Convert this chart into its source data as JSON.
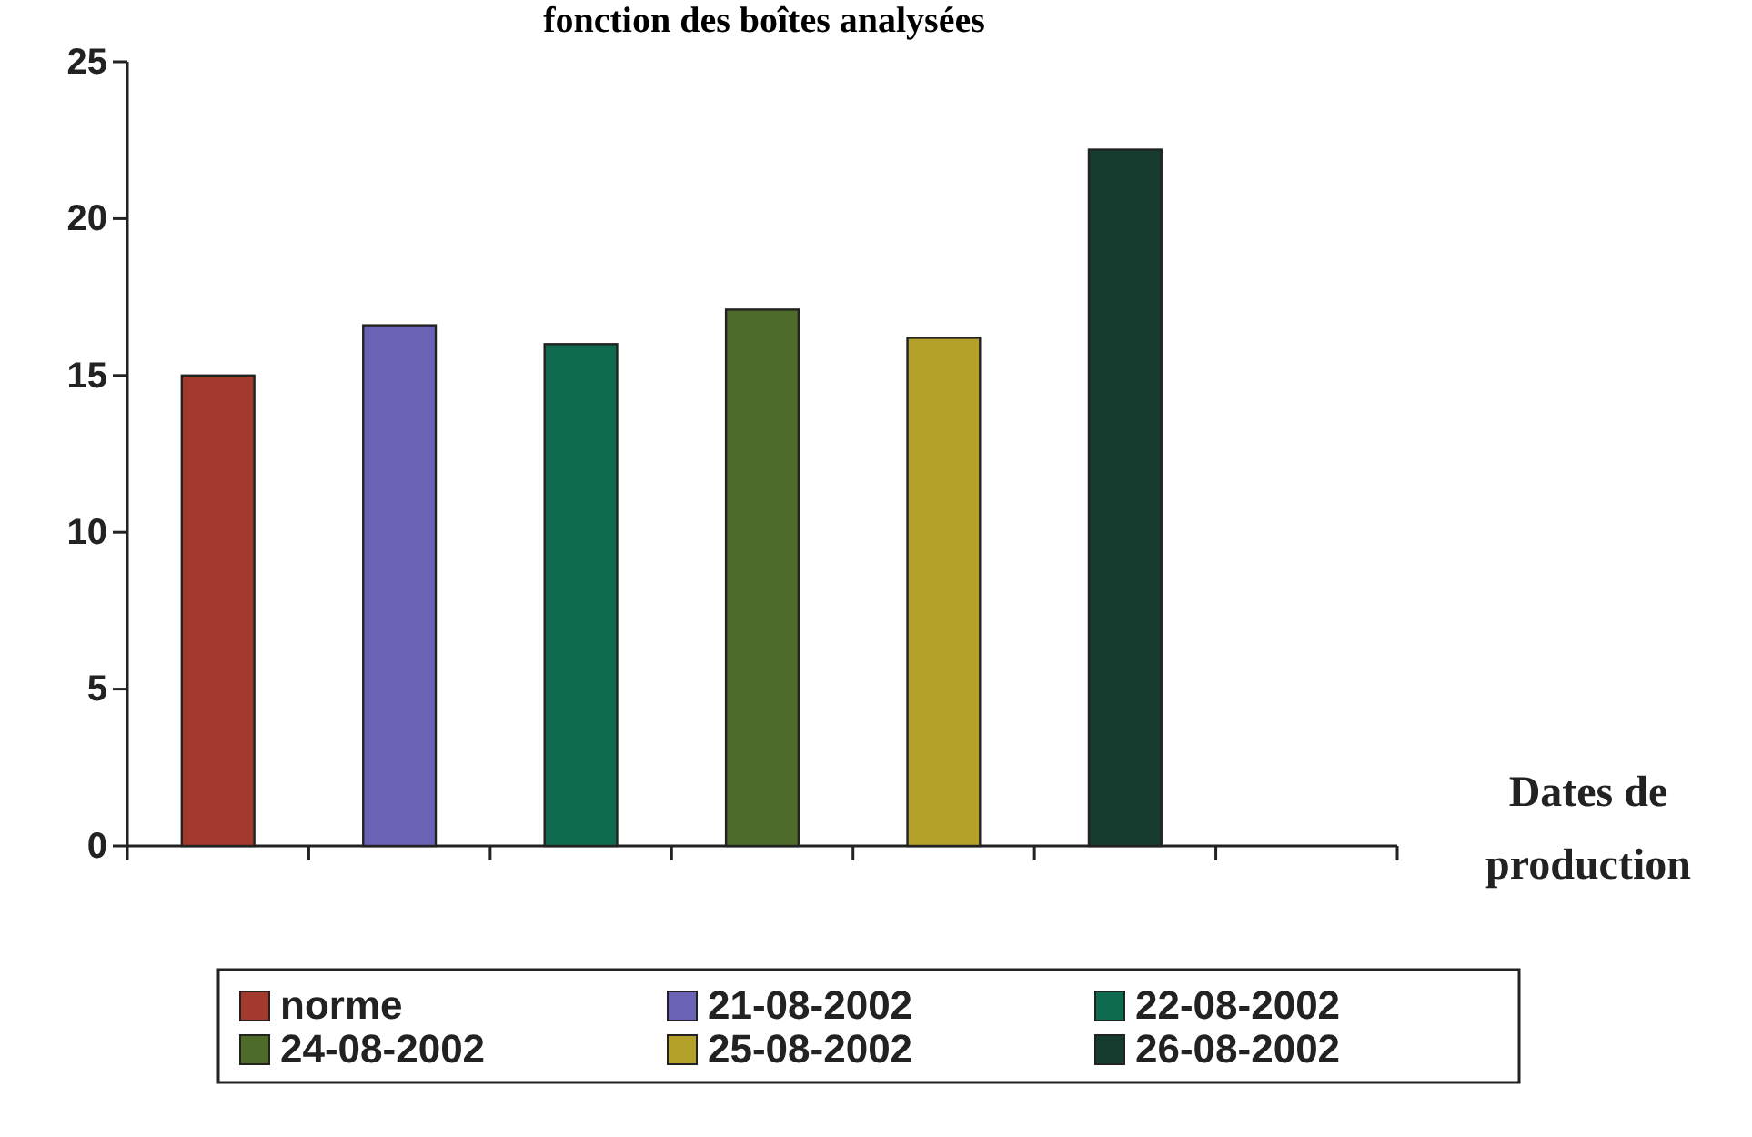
{
  "chart_data": {
    "type": "bar",
    "title": "fonction des boîtes analysées",
    "xlabel": "Dates de production",
    "categories": [
      null,
      null,
      null,
      null,
      null,
      null,
      null
    ],
    "series": [
      {
        "name": "norme",
        "color": "#a33a2e",
        "values": [
          15,
          null,
          null,
          null,
          null,
          null,
          null
        ]
      },
      {
        "name": "21-08-2002",
        "color": "#6a63b5",
        "values": [
          null,
          16.6,
          null,
          null,
          null,
          null,
          null
        ]
      },
      {
        "name": "22-08-2002",
        "color": "#0f6b4f",
        "values": [
          null,
          null,
          16.0,
          null,
          null,
          null,
          null
        ]
      },
      {
        "name": "24-08-2002",
        "color": "#4f6b2a",
        "values": [
          null,
          null,
          null,
          17.1,
          null,
          null,
          null
        ]
      },
      {
        "name": "25-08-2002",
        "color": "#b4a12a",
        "values": [
          null,
          null,
          null,
          null,
          16.2,
          null,
          null
        ]
      },
      {
        "name": "26-08-2002",
        "color": "#163c30",
        "values": [
          null,
          null,
          null,
          null,
          null,
          22.2,
          null
        ]
      }
    ],
    "ylim": [
      0,
      25
    ],
    "yticks": [
      0,
      5,
      10,
      15,
      20,
      25
    ],
    "grid": false,
    "legend": "bottom"
  }
}
